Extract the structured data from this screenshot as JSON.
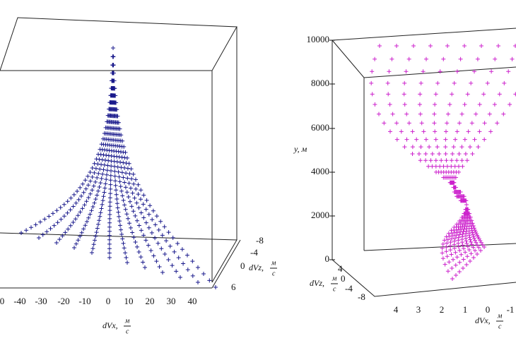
{
  "left": {
    "x_ticks": [
      "0",
      "-40",
      "-30",
      "-20",
      "-10",
      "0",
      "10",
      "20",
      "30",
      "40"
    ],
    "z_ticks": [
      "-8",
      "-4",
      "0",
      "6"
    ],
    "x_label": {
      "name": "dVx,",
      "num": "м",
      "den": "с"
    },
    "z_label": {
      "name": "dVz,",
      "num": "м",
      "den": "с"
    }
  },
  "right": {
    "y_ticks": [
      "10000",
      "8000",
      "6000",
      "4000",
      "2000",
      "0"
    ],
    "y_label": "y, м",
    "z_ticks": [
      "4",
      "0",
      "-4",
      "-8"
    ],
    "x_ticks": [
      "4",
      "3",
      "2",
      "1",
      "0",
      "-1"
    ],
    "z_label": {
      "name": "dVz,",
      "num": "м",
      "den": "с"
    },
    "x_label": {
      "name": "dVx,",
      "num": "м",
      "den": "с"
    }
  }
}
